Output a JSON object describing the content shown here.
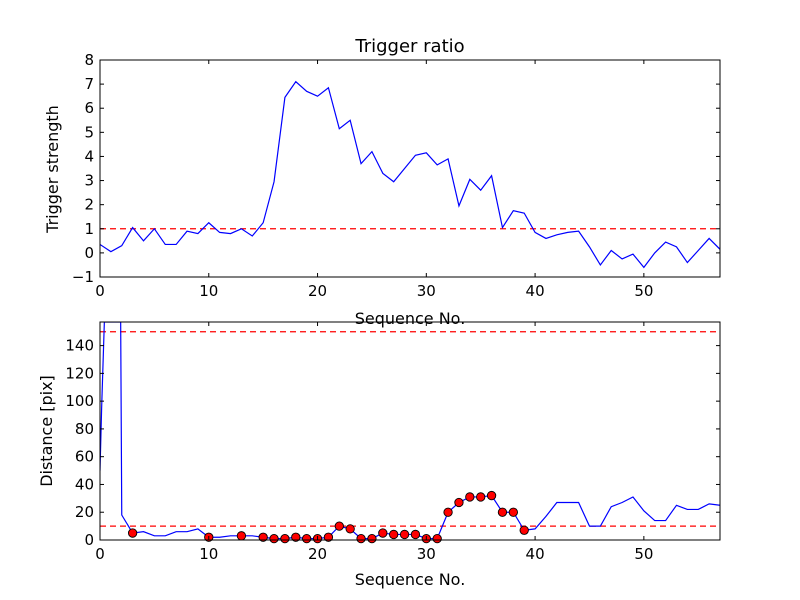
{
  "colors": {
    "line": "#0000ff",
    "threshold": "#ff0000",
    "marker_fill": "#ff0000",
    "marker_edge": "#000000",
    "axes": "#000000",
    "background": "#ffffff"
  },
  "chart_data": [
    {
      "type": "line",
      "title": "Trigger ratio",
      "xlabel": "Sequence No.",
      "ylabel": "Trigger strength",
      "xlim": [
        0,
        57
      ],
      "ylim": [
        -1,
        8
      ],
      "xticks": [
        0,
        10,
        20,
        30,
        40,
        50
      ],
      "yticks": [
        -1,
        0,
        1,
        2,
        3,
        4,
        5,
        6,
        7,
        8
      ],
      "xtick_labels": [
        "0",
        "10",
        "20",
        "30",
        "40",
        "50"
      ],
      "ytick_labels": [
        "−1",
        "0",
        "1",
        "2",
        "3",
        "4",
        "5",
        "6",
        "7",
        "8"
      ],
      "grid": false,
      "series": [
        {
          "x": [
            0,
            1,
            2,
            3,
            4,
            5,
            6,
            7,
            8,
            9,
            10,
            11,
            12,
            13,
            14,
            15,
            16,
            17,
            18,
            19,
            20,
            21,
            22,
            23,
            24,
            25,
            26,
            27,
            28,
            29,
            30,
            31,
            32,
            33,
            34,
            35,
            36,
            37,
            38,
            39,
            40,
            41,
            42,
            43,
            44,
            45,
            46,
            47,
            48,
            49,
            50,
            51,
            52,
            53,
            54,
            55,
            56,
            57
          ],
          "y": [
            0.35,
            0.05,
            0.3,
            1.05,
            0.5,
            1.0,
            0.35,
            0.35,
            0.9,
            0.8,
            1.25,
            0.85,
            0.8,
            1.0,
            0.7,
            1.25,
            2.95,
            6.45,
            7.1,
            6.7,
            6.5,
            6.85,
            5.15,
            5.5,
            3.7,
            4.2,
            3.3,
            2.95,
            3.5,
            4.05,
            4.15,
            3.65,
            3.9,
            1.95,
            3.05,
            2.6,
            3.2,
            1.05,
            1.75,
            1.65,
            0.85,
            0.6,
            0.75,
            0.85,
            0.9,
            0.25,
            -0.5,
            0.1,
            -0.25,
            -0.05,
            -0.6,
            0.0,
            0.45,
            0.25,
            -0.4,
            0.1,
            0.6,
            0.15
          ]
        }
      ],
      "thresholds": [
        1
      ]
    },
    {
      "type": "line",
      "title": "",
      "xlabel": "Sequence No.",
      "ylabel": "Distance [pix]",
      "xlim": [
        0,
        57
      ],
      "ylim": [
        0,
        157
      ],
      "xticks": [
        0,
        10,
        20,
        30,
        40,
        50
      ],
      "yticks": [
        0,
        20,
        40,
        60,
        80,
        100,
        120,
        140
      ],
      "xtick_labels": [
        "0",
        "10",
        "20",
        "30",
        "40",
        "50"
      ],
      "ytick_labels": [
        "0",
        "20",
        "40",
        "60",
        "80",
        "100",
        "120",
        "140"
      ],
      "grid": false,
      "series": [
        {
          "x": [
            0,
            0.15,
            0.4,
            1,
            1.9,
            2,
            3,
            4,
            5,
            6,
            7,
            8,
            9,
            10,
            11,
            12,
            13,
            14,
            15,
            16,
            17,
            18,
            19,
            20,
            21,
            22,
            23,
            24,
            25,
            26,
            27,
            28,
            29,
            30,
            31,
            32,
            33,
            34,
            35,
            36,
            37,
            38,
            39,
            40,
            41,
            42,
            43,
            44,
            45,
            46,
            47,
            48,
            49,
            50,
            51,
            52,
            53,
            54,
            55,
            56,
            57
          ],
          "y": [
            50,
            95,
            157,
            157,
            157,
            18,
            5,
            6,
            3,
            3,
            6,
            6,
            8,
            2,
            2,
            3,
            3,
            3,
            2,
            1,
            1,
            2,
            1,
            1,
            2,
            10,
            8,
            1,
            1,
            5,
            4,
            4,
            4,
            1,
            1,
            20,
            27,
            31,
            31,
            32,
            20,
            20,
            7,
            8,
            17,
            27,
            27,
            27,
            10,
            10,
            24,
            27,
            31,
            21,
            14,
            14,
            25,
            22,
            22,
            26,
            25
          ]
        }
      ],
      "highlighted_points": {
        "x": [
          3,
          10,
          13,
          15,
          16,
          17,
          18,
          19,
          20,
          21,
          22,
          23,
          24,
          25,
          26,
          27,
          28,
          29,
          30,
          31,
          32,
          33,
          34,
          35,
          36,
          37,
          38,
          39
        ],
        "y": [
          5,
          2,
          3,
          2,
          1,
          1,
          2,
          1,
          1,
          2,
          10,
          8,
          1,
          1,
          5,
          4,
          4,
          4,
          1,
          1,
          20,
          27,
          31,
          31,
          32,
          20,
          20,
          7
        ]
      },
      "thresholds": [
        10,
        150
      ]
    }
  ]
}
